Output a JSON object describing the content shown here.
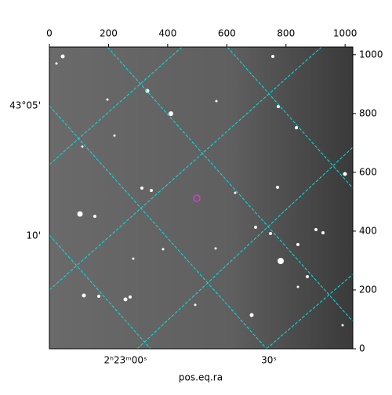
{
  "chart_data": {
    "type": "image",
    "xlabel": "pos.eq.ra",
    "xlim": [
      0,
      1026
    ],
    "xticks": [
      0,
      200,
      400,
      600,
      800,
      1000
    ],
    "ylim": [
      0,
      1026
    ],
    "yticks": [
      0,
      200,
      400,
      600,
      800,
      1000
    ],
    "ra_tick_labels": [
      "2ʰ23ᵐ00ˢ",
      "30ˢ"
    ],
    "dec_tick_labels": [
      "43°05'",
      "10'"
    ],
    "grid_color": "#00e5e5"
  }
}
